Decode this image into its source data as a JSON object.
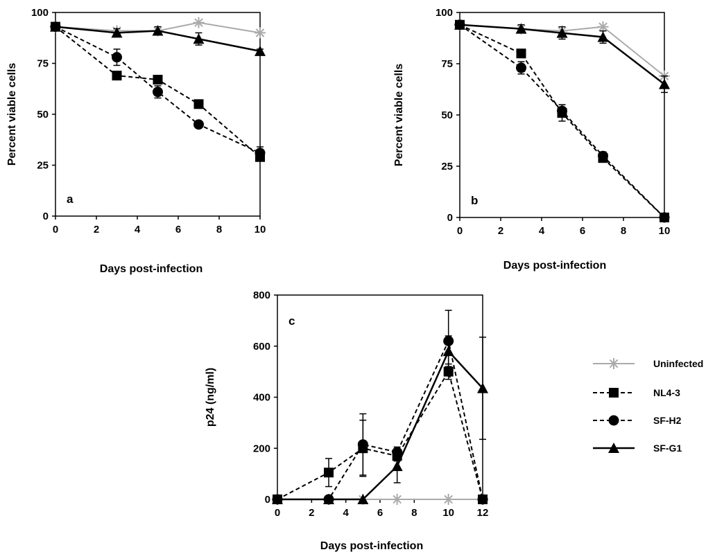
{
  "chart_data": [
    {
      "type": "line",
      "panel_label": "a",
      "xlabel": "Days post-infection",
      "ylabel": "Percent viable cells",
      "xlim": [
        0,
        10
      ],
      "ylim": [
        0,
        100
      ],
      "xticks": [
        "0",
        "2",
        "4",
        "6",
        "8",
        "10"
      ],
      "yticks": [
        "0",
        "25",
        "50",
        "75",
        "100"
      ],
      "grid": false,
      "series": [
        {
          "name": "Uninfected",
          "x": [
            0,
            3,
            5,
            7,
            10
          ],
          "y": [
            93,
            91,
            91,
            95,
            90
          ]
        },
        {
          "name": "NL4-3",
          "x": [
            0,
            3,
            5,
            7,
            10
          ],
          "y": [
            93,
            69,
            67,
            55,
            29
          ],
          "err": [
            0,
            2,
            2,
            1,
            2
          ]
        },
        {
          "name": "SF-H2",
          "x": [
            0,
            3,
            5,
            7,
            10
          ],
          "y": [
            93,
            78,
            61,
            45,
            31
          ],
          "err": [
            0,
            4,
            3,
            1,
            3
          ]
        },
        {
          "name": "SF-G1",
          "x": [
            0,
            3,
            5,
            7,
            10
          ],
          "y": [
            93,
            90,
            91,
            87,
            81
          ],
          "err": [
            0,
            2,
            2,
            3,
            1
          ]
        }
      ]
    },
    {
      "type": "line",
      "panel_label": "b",
      "xlabel": "Days post-infection",
      "ylabel": "Percent viable cells",
      "xlim": [
        0,
        10
      ],
      "ylim": [
        0,
        100
      ],
      "xticks": [
        "0",
        "2",
        "4",
        "6",
        "8",
        "10"
      ],
      "yticks": [
        "0",
        "25",
        "50",
        "75",
        "100"
      ],
      "grid": false,
      "series": [
        {
          "name": "Uninfected",
          "x": [
            0,
            3,
            5,
            7,
            10
          ],
          "y": [
            94,
            92,
            91,
            93,
            69
          ]
        },
        {
          "name": "NL4-3",
          "x": [
            0,
            3,
            5,
            7,
            10
          ],
          "y": [
            94,
            80,
            51,
            29,
            0
          ],
          "err": [
            0,
            2,
            4,
            2,
            0
          ]
        },
        {
          "name": "SF-H2",
          "x": [
            0,
            3,
            5,
            7,
            10
          ],
          "y": [
            94,
            73,
            52,
            30,
            0
          ],
          "err": [
            0,
            3,
            3,
            2,
            0
          ]
        },
        {
          "name": "SF-G1",
          "x": [
            0,
            3,
            5,
            7,
            10
          ],
          "y": [
            94,
            92,
            90,
            88,
            65
          ],
          "err": [
            0,
            2,
            3,
            3,
            4
          ]
        }
      ]
    },
    {
      "type": "line",
      "panel_label": "c",
      "xlabel": "Days post-infection",
      "ylabel": "p24  (ng/ml)",
      "xlim": [
        0,
        12
      ],
      "ylim": [
        0,
        800
      ],
      "xticks": [
        "0",
        "2",
        "4",
        "6",
        "8",
        "10",
        "12"
      ],
      "yticks": [
        "0",
        "200",
        "400",
        "600",
        "800"
      ],
      "grid": false,
      "series": [
        {
          "name": "Uninfected",
          "x": [
            0,
            3,
            5,
            7,
            10,
            12
          ],
          "y": [
            0,
            0,
            0,
            0,
            0,
            0
          ]
        },
        {
          "name": "NL4-3",
          "x": [
            0,
            3,
            5,
            7,
            10,
            12
          ],
          "y": [
            0,
            105,
            200,
            170,
            500,
            0
          ],
          "err": [
            0,
            55,
            110,
            20,
            30,
            0
          ]
        },
        {
          "name": "SF-H2",
          "x": [
            0,
            3,
            5,
            7,
            10,
            12
          ],
          "y": [
            0,
            0,
            215,
            185,
            620,
            0
          ],
          "err": [
            0,
            0,
            120,
            20,
            120,
            0
          ]
        },
        {
          "name": "SF-G1",
          "x": [
            0,
            3,
            5,
            7,
            10,
            12
          ],
          "y": [
            0,
            0,
            0,
            130,
            580,
            435
          ],
          "err": [
            0,
            0,
            0,
            65,
            60,
            200
          ]
        }
      ]
    }
  ],
  "legend": {
    "placement": "right of panel c",
    "items": [
      {
        "name": "Uninfected",
        "marker": "asterisk-icon",
        "line": "solid",
        "color": "#aaaaaa"
      },
      {
        "name": "NL4-3",
        "marker": "square-icon",
        "line": "dashed",
        "color": "#000000"
      },
      {
        "name": "SF-H2",
        "marker": "circle-icon",
        "line": "dashed",
        "color": "#000000"
      },
      {
        "name": "SF-G1",
        "marker": "triangle-icon",
        "line": "solid",
        "color": "#000000"
      }
    ]
  }
}
